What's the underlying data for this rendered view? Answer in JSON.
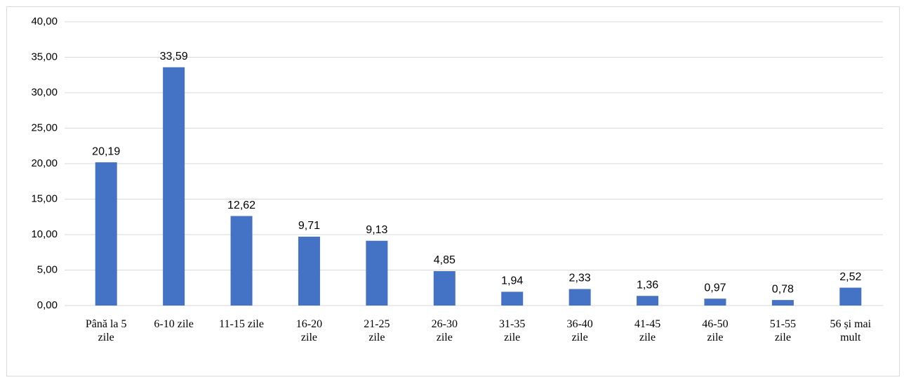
{
  "chart_data": {
    "type": "bar",
    "categories": [
      "Până la 5 zile",
      "6-10 zile",
      "11-15 zile",
      "16-20 zile",
      "21-25 zile",
      "26-30 zile",
      "31-35 zile",
      "36-40 zile",
      "41-45 zile",
      "46-50 zile",
      "51-55 zile",
      "56 și mai mult"
    ],
    "values": [
      20.19,
      33.59,
      12.62,
      9.71,
      9.13,
      4.85,
      1.94,
      2.33,
      1.36,
      0.97,
      0.78,
      2.52
    ],
    "value_labels": [
      "20,19",
      "33,59",
      "12,62",
      "9,71",
      "9,13",
      "4,85",
      "1,94",
      "2,33",
      "1,36",
      "0,97",
      "0,78",
      "2,52"
    ],
    "color": "#4472c4",
    "ylim": [
      0,
      40
    ],
    "yticks": [
      {
        "value": 0,
        "label": "0,00"
      },
      {
        "value": 5,
        "label": "5,00"
      },
      {
        "value": 10,
        "label": "10,00"
      },
      {
        "value": 15,
        "label": "15,00"
      },
      {
        "value": 20,
        "label": "20,00"
      },
      {
        "value": 25,
        "label": "25,00"
      },
      {
        "value": 30,
        "label": "30,00"
      },
      {
        "value": 35,
        "label": "35,00"
      },
      {
        "value": 40,
        "label": "40,00"
      }
    ],
    "grid": true
  }
}
